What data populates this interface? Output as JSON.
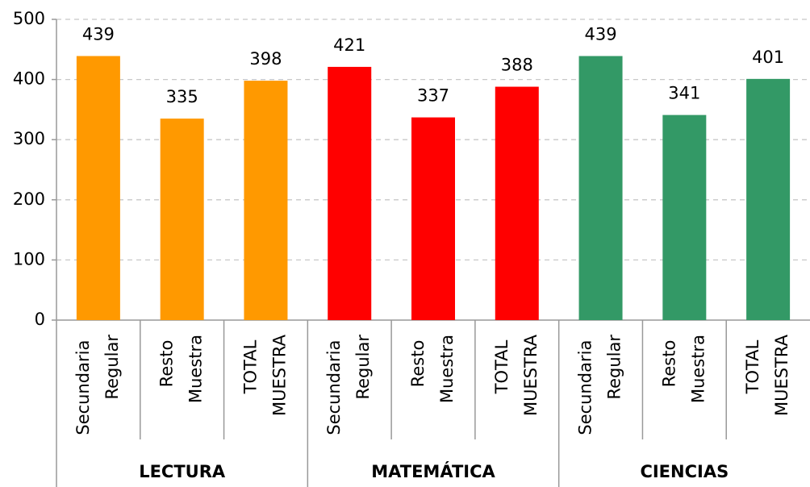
{
  "chart_data": {
    "type": "bar",
    "groups": [
      {
        "name": "LECTURA",
        "color": "#ff9900",
        "categories": [
          "Secundaria Regular",
          "Resto Muestra",
          "TOTAL MUESTRA"
        ],
        "values": [
          439,
          335,
          398
        ]
      },
      {
        "name": "MATEMÁTICA",
        "color": "#ff0000",
        "categories": [
          "Secundaria Regular",
          "Resto Muestra",
          "TOTAL MUESTRA"
        ],
        "values": [
          421,
          337,
          388
        ]
      },
      {
        "name": "CIENCIAS",
        "color": "#339966",
        "categories": [
          "Secundaria Regular",
          "Resto Muestra",
          "TOTAL MUESTRA"
        ],
        "values": [
          439,
          341,
          401
        ]
      }
    ],
    "ylim": [
      0,
      500
    ],
    "yticks": [
      0,
      100,
      200,
      300,
      400,
      500
    ],
    "grid": true
  }
}
